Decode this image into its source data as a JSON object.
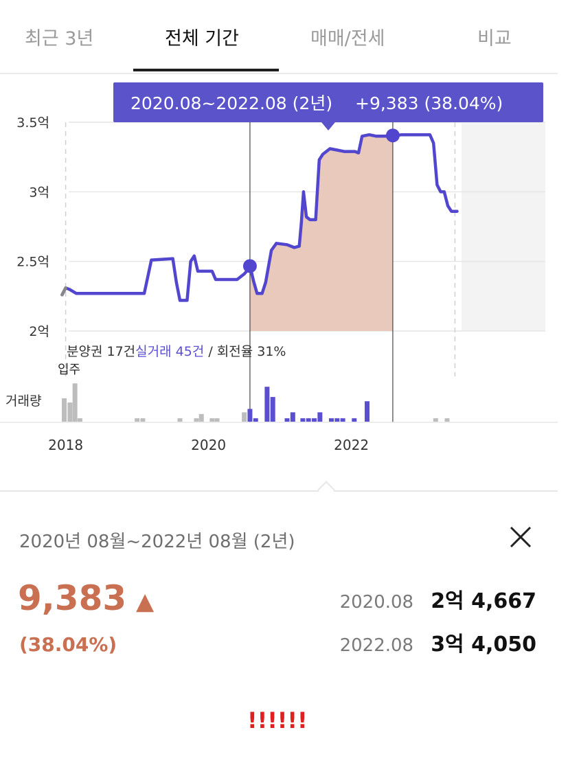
{
  "tabs": [
    {
      "label": "최근 3년",
      "active": false
    },
    {
      "label": "전체 기간",
      "active": true
    },
    {
      "label": "매매/전세",
      "active": false
    },
    {
      "label": "비교",
      "active": false
    }
  ],
  "tooltip": {
    "range": "2020.08~2022.08 (2년)",
    "change": "+9,383 (38.04%)"
  },
  "trade_info": {
    "presale": "분양권 17건",
    "actual": "실거래 45건",
    "turnover": " / 회전율 31%"
  },
  "volume_labels": {
    "move_in": "입주",
    "volume": "거래량"
  },
  "colors": {
    "line": "#5246cf",
    "fill": "#e8c9bb",
    "tooltip_bg": "#5a53c9",
    "gain": "#c96f52",
    "volume_bar": "#5a4fd0",
    "volume_bar_gray": "#bdbdbd"
  },
  "chart_data": {
    "type": "line",
    "yunits": "억",
    "ylim": [
      2.0,
      3.5
    ],
    "yticks": [
      {
        "v": 3.5,
        "label": "3.5억"
      },
      {
        "v": 3.0,
        "label": "3억"
      },
      {
        "v": 2.5,
        "label": "2.5억"
      },
      {
        "v": 2.0,
        "label": "2억"
      }
    ],
    "xlim": [
      2017.85,
      2023.6
    ],
    "xticks": [
      {
        "v": 2018,
        "label": "2018"
      },
      {
        "v": 2020,
        "label": "2020"
      },
      {
        "v": 2022,
        "label": "2022"
      }
    ],
    "series": [
      {
        "points": [
          [
            2017.95,
            2.26
          ],
          [
            2018.0,
            2.31
          ],
          [
            2018.05,
            2.3
          ],
          [
            2018.15,
            2.27
          ],
          [
            2019.0,
            2.27
          ],
          [
            2019.1,
            2.27
          ],
          [
            2019.2,
            2.51
          ],
          [
            2019.5,
            2.52
          ],
          [
            2019.55,
            2.35
          ],
          [
            2019.6,
            2.22
          ],
          [
            2019.7,
            2.22
          ],
          [
            2019.75,
            2.5
          ],
          [
            2019.8,
            2.54
          ],
          [
            2019.85,
            2.43
          ],
          [
            2019.95,
            2.43
          ],
          [
            2020.05,
            2.43
          ],
          [
            2020.1,
            2.37
          ],
          [
            2020.4,
            2.37
          ],
          [
            2020.5,
            2.41
          ],
          [
            2020.55,
            2.44
          ],
          [
            2020.58,
            2.47
          ],
          [
            2020.63,
            2.36
          ],
          [
            2020.68,
            2.27
          ],
          [
            2020.75,
            2.27
          ],
          [
            2020.8,
            2.35
          ],
          [
            2020.88,
            2.58
          ],
          [
            2020.95,
            2.63
          ],
          [
            2021.1,
            2.62
          ],
          [
            2021.2,
            2.6
          ],
          [
            2021.27,
            2.61
          ],
          [
            2021.3,
            2.78
          ],
          [
            2021.33,
            3.0
          ],
          [
            2021.37,
            2.82
          ],
          [
            2021.42,
            2.8
          ],
          [
            2021.5,
            2.8
          ],
          [
            2021.55,
            3.23
          ],
          [
            2021.6,
            3.27
          ],
          [
            2021.7,
            3.31
          ],
          [
            2021.8,
            3.3
          ],
          [
            2021.9,
            3.29
          ],
          [
            2022.0,
            3.29
          ],
          [
            2022.05,
            3.29
          ],
          [
            2022.1,
            3.28
          ],
          [
            2022.15,
            3.4
          ],
          [
            2022.25,
            3.41
          ],
          [
            2022.35,
            3.4
          ],
          [
            2022.5,
            3.4
          ],
          [
            2022.58,
            3.4
          ],
          [
            2022.7,
            3.41
          ],
          [
            2023.1,
            3.41
          ],
          [
            2023.15,
            3.35
          ],
          [
            2023.2,
            3.05
          ],
          [
            2023.25,
            3.0
          ],
          [
            2023.3,
            3.0
          ],
          [
            2023.35,
            2.9
          ],
          [
            2023.4,
            2.86
          ],
          [
            2023.48,
            2.86
          ]
        ]
      }
    ],
    "selected_range": {
      "start": 2020.58,
      "end": 2022.58,
      "start_value": 2.4667,
      "end_value": 3.405
    },
    "volume": [
      {
        "x": 2017.98,
        "h": 0.55,
        "gray": true
      },
      {
        "x": 2018.06,
        "h": 0.45,
        "gray": true
      },
      {
        "x": 2018.13,
        "h": 0.9,
        "gray": true
      },
      {
        "x": 2018.2,
        "h": 0.08,
        "gray": true
      },
      {
        "x": 2019.0,
        "h": 0.08,
        "gray": true
      },
      {
        "x": 2019.08,
        "h": 0.08,
        "gray": true
      },
      {
        "x": 2019.6,
        "h": 0.08,
        "gray": true
      },
      {
        "x": 2019.83,
        "h": 0.08,
        "gray": true
      },
      {
        "x": 2019.9,
        "h": 0.18,
        "gray": true
      },
      {
        "x": 2020.05,
        "h": 0.08,
        "gray": true
      },
      {
        "x": 2020.12,
        "h": 0.08,
        "gray": true
      },
      {
        "x": 2020.5,
        "h": 0.22,
        "gray": true
      },
      {
        "x": 2020.58,
        "h": 0.3,
        "gray": false
      },
      {
        "x": 2020.66,
        "h": 0.08,
        "gray": false
      },
      {
        "x": 2020.82,
        "h": 0.82,
        "gray": false
      },
      {
        "x": 2020.9,
        "h": 0.58,
        "gray": false
      },
      {
        "x": 2021.1,
        "h": 0.08,
        "gray": false
      },
      {
        "x": 2021.18,
        "h": 0.22,
        "gray": false
      },
      {
        "x": 2021.32,
        "h": 0.08,
        "gray": false
      },
      {
        "x": 2021.4,
        "h": 0.08,
        "gray": false
      },
      {
        "x": 2021.48,
        "h": 0.08,
        "gray": false
      },
      {
        "x": 2021.56,
        "h": 0.22,
        "gray": false
      },
      {
        "x": 2021.72,
        "h": 0.08,
        "gray": false
      },
      {
        "x": 2021.8,
        "h": 0.08,
        "gray": false
      },
      {
        "x": 2021.88,
        "h": 0.08,
        "gray": false
      },
      {
        "x": 2022.04,
        "h": 0.08,
        "gray": false
      },
      {
        "x": 2022.22,
        "h": 0.48,
        "gray": false
      },
      {
        "x": 2023.18,
        "h": 0.08,
        "gray": true
      },
      {
        "x": 2023.34,
        "h": 0.08,
        "gray": true
      }
    ]
  },
  "summary": {
    "period": "2020년 08월~2022년 08월 (2년)",
    "change_value": "9,383",
    "change_arrow": "▲",
    "change_percent": "(38.04%)",
    "start_date": "2020.08",
    "start_price": "2억 4,667",
    "end_date": "2022.08",
    "end_price": "3억 4,050"
  },
  "alert_text": "!!!!!!"
}
